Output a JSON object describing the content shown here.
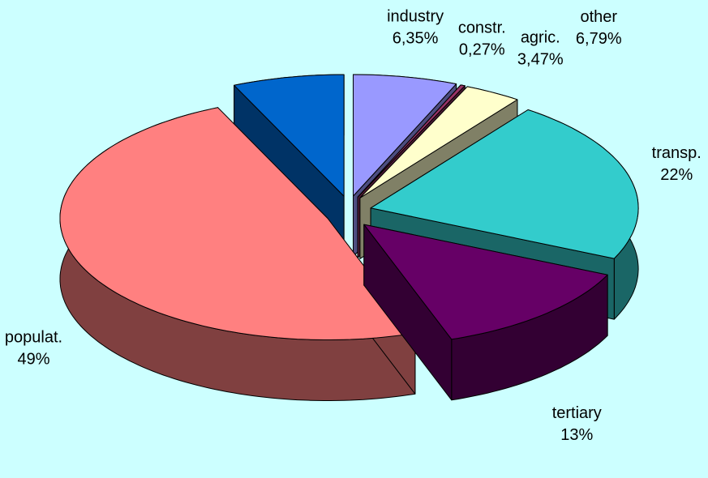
{
  "chart_data": {
    "type": "pie",
    "categories": [
      "industry",
      "constr.",
      "agric.",
      "transp.",
      "tertiary",
      "populat.",
      "other"
    ],
    "values": [
      6.35,
      0.27,
      3.47,
      22,
      13,
      49,
      6.79
    ],
    "value_labels": [
      "6,35%",
      "0,27%",
      "3,47%",
      "22%",
      "13%",
      "49%",
      "6,79%"
    ],
    "colors": [
      "#9999ff",
      "#993366",
      "#ffffcc",
      "#33cccc",
      "#660066",
      "#ff8080",
      "#0066cc"
    ],
    "background": "#ccffff"
  }
}
